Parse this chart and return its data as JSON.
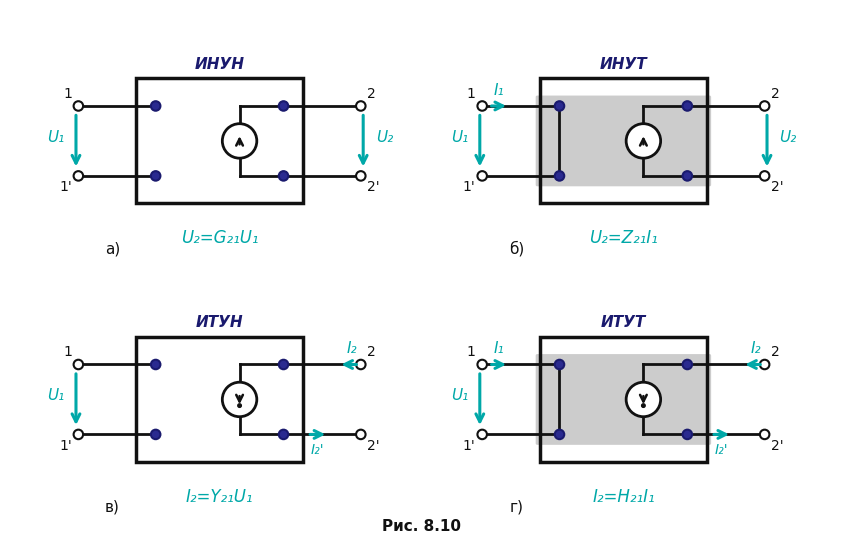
{
  "bg_color": "#ffffff",
  "teal": "#00a8a8",
  "dark": "#1a1a6e",
  "black": "#111111",
  "caption": "Рис. 8.10",
  "panels": [
    {
      "label": "а)",
      "title": "ИНУН",
      "formula": "U₂=G₂₁U₁",
      "source_up": true,
      "input_current": false,
      "output_current": false,
      "shaded": false,
      "left_vertical": false
    },
    {
      "label": "б)",
      "title": "ИНУТ",
      "formula": "U₂=Z₂₁I₁",
      "source_up": true,
      "input_current": true,
      "output_current": false,
      "shaded": true,
      "left_vertical": true
    },
    {
      "label": "в)",
      "title": "ИТУН",
      "formula": "I₂=Y₂₁U₁",
      "source_up": false,
      "input_current": false,
      "output_current": true,
      "shaded": false,
      "left_vertical": false
    },
    {
      "label": "г)",
      "title": "ИТУТ",
      "formula": "I₂=H₂₁I₁",
      "source_up": false,
      "input_current": true,
      "output_current": true,
      "shaded": true,
      "left_vertical": true
    }
  ]
}
